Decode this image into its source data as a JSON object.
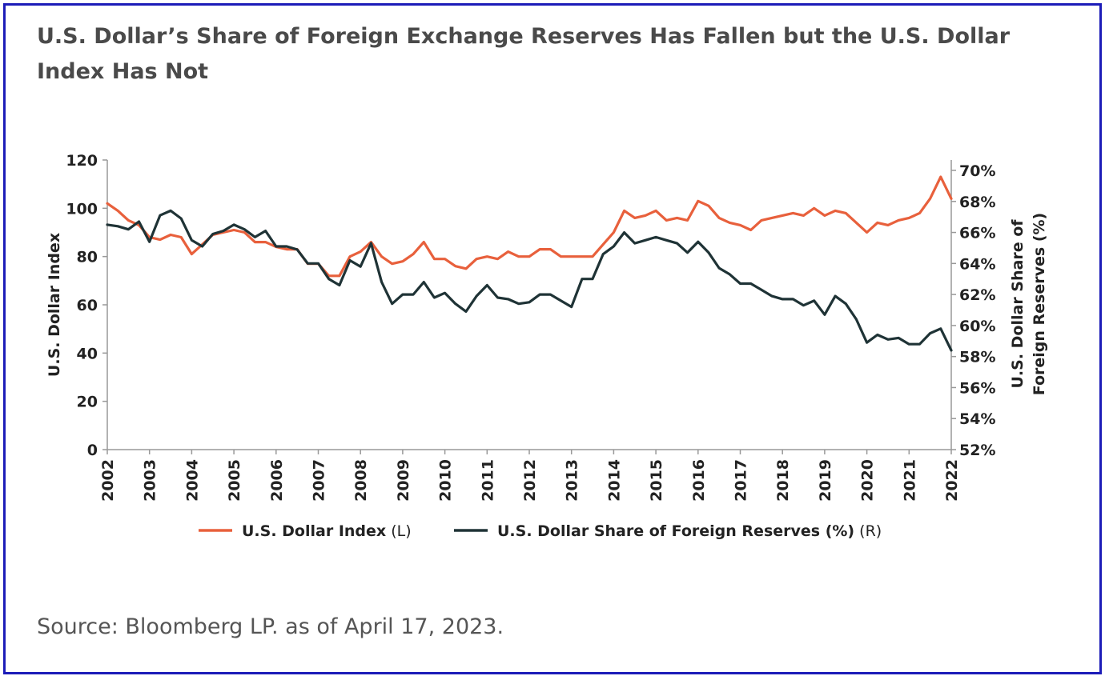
{
  "title": "U.S. Dollar’s Share of Foreign Exchange Reserves Has Fallen but the U.S. Dollar Index Has Not",
  "source": "Source: Bloomberg LP. as of April 17, 2023.",
  "colors": {
    "border": "#1c1cb8",
    "dxy": "#e8603c",
    "share": "#1f3336",
    "axis": "#999999"
  },
  "chart_data": {
    "type": "line",
    "title": "U.S. Dollar’s Share of Foreign Exchange Reserves Has Fallen but the U.S. Dollar Index Has Not",
    "xlabel": "",
    "ylabel_left": "U.S. Dollar Index",
    "ylabel_right": "U.S. Dollar Share of Foreign Reserves (%)",
    "ylabel_right_lines": [
      "U.S. Dollar Share of",
      "Foreign Reserves (%)"
    ],
    "xlim": [
      2002,
      2022
    ],
    "ylim_left": [
      0,
      120
    ],
    "ylim_right": [
      52,
      70
    ],
    "x_ticks": [
      "2002",
      "2003",
      "2004",
      "2005",
      "2006",
      "2007",
      "2008",
      "2009",
      "2010",
      "2011",
      "2012",
      "2013",
      "2014",
      "2015",
      "2016",
      "2017",
      "2018",
      "2019",
      "2020",
      "2021",
      "2022"
    ],
    "y_ticks_left": [
      "0",
      "20",
      "40",
      "60",
      "80",
      "100",
      "120"
    ],
    "y_ticks_right": [
      "52%",
      "54%",
      "56%",
      "58%",
      "60%",
      "62%",
      "64%",
      "66%",
      "68%",
      "70%"
    ],
    "legend": [
      {
        "label": "U.S. Dollar Index",
        "suffix": " (L)",
        "axis": "left"
      },
      {
        "label": "U.S. Dollar Share of Foreign Reserves (%)",
        "suffix": " (R)",
        "axis": "right"
      }
    ],
    "series": [
      {
        "name": "U.S. Dollar Index",
        "axis": "left",
        "x": [
          2002.0,
          2002.25,
          2002.5,
          2002.75,
          2003.0,
          2003.25,
          2003.5,
          2003.75,
          2004.0,
          2004.25,
          2004.5,
          2004.75,
          2005.0,
          2005.25,
          2005.5,
          2005.75,
          2006.0,
          2006.25,
          2006.5,
          2006.75,
          2007.0,
          2007.25,
          2007.5,
          2007.75,
          2008.0,
          2008.25,
          2008.5,
          2008.75,
          2009.0,
          2009.25,
          2009.5,
          2009.75,
          2010.0,
          2010.25,
          2010.5,
          2010.75,
          2011.0,
          2011.25,
          2011.5,
          2011.75,
          2012.0,
          2012.25,
          2012.5,
          2012.75,
          2013.0,
          2013.25,
          2013.5,
          2013.75,
          2014.0,
          2014.25,
          2014.5,
          2014.75,
          2015.0,
          2015.25,
          2015.5,
          2015.75,
          2016.0,
          2016.25,
          2016.5,
          2016.75,
          2017.0,
          2017.25,
          2017.5,
          2017.75,
          2018.0,
          2018.25,
          2018.5,
          2018.75,
          2019.0,
          2019.25,
          2019.5,
          2019.75,
          2020.0,
          2020.25,
          2020.5,
          2020.75,
          2021.0,
          2021.25,
          2021.5,
          2021.75,
          2022.0
        ],
        "values": [
          102,
          99,
          95,
          93,
          88,
          87,
          89,
          88,
          81,
          85,
          89,
          90,
          91,
          90,
          86,
          86,
          84,
          83,
          83,
          77,
          77,
          72,
          72,
          80,
          82,
          86,
          80,
          77,
          78,
          81,
          86,
          79,
          79,
          76,
          75,
          79,
          80,
          79,
          82,
          80,
          80,
          83,
          83,
          80,
          80,
          80,
          80,
          85,
          90,
          99,
          96,
          97,
          99,
          95,
          96,
          95,
          103,
          101,
          96,
          94,
          93,
          91,
          95,
          96,
          97,
          98,
          97,
          100,
          97,
          99,
          98,
          94,
          90,
          94,
          93,
          95,
          96,
          98,
          104,
          113,
          104
        ]
      },
      {
        "name": "U.S. Dollar Share of Foreign Reserves (%)",
        "axis": "right",
        "x": [
          2002.0,
          2002.25,
          2002.5,
          2002.75,
          2003.0,
          2003.25,
          2003.5,
          2003.75,
          2004.0,
          2004.25,
          2004.5,
          2004.75,
          2005.0,
          2005.25,
          2005.5,
          2005.75,
          2006.0,
          2006.25,
          2006.5,
          2006.75,
          2007.0,
          2007.25,
          2007.5,
          2007.75,
          2008.0,
          2008.25,
          2008.5,
          2008.75,
          2009.0,
          2009.25,
          2009.5,
          2009.75,
          2010.0,
          2010.25,
          2010.5,
          2010.75,
          2011.0,
          2011.25,
          2011.5,
          2011.75,
          2012.0,
          2012.25,
          2012.5,
          2012.75,
          2013.0,
          2013.25,
          2013.5,
          2013.75,
          2014.0,
          2014.25,
          2014.5,
          2014.75,
          2015.0,
          2015.25,
          2015.5,
          2015.75,
          2016.0,
          2016.25,
          2016.5,
          2016.75,
          2017.0,
          2017.25,
          2017.5,
          2017.75,
          2018.0,
          2018.25,
          2018.5,
          2018.75,
          2019.0,
          2019.25,
          2019.5,
          2019.75,
          2020.0,
          2020.25,
          2020.5,
          2020.75,
          2021.0,
          2021.25,
          2021.5,
          2021.75,
          2022.0
        ],
        "values": [
          66.5,
          66.4,
          66.2,
          66.7,
          65.4,
          67.1,
          67.4,
          66.9,
          65.5,
          65.1,
          65.9,
          66.1,
          66.5,
          66.2,
          65.7,
          66.1,
          65.1,
          65.1,
          64.9,
          64.0,
          64.0,
          63.0,
          62.6,
          64.2,
          63.8,
          65.3,
          62.8,
          61.4,
          62.0,
          62.0,
          62.8,
          61.8,
          62.1,
          61.4,
          60.9,
          61.9,
          62.6,
          61.8,
          61.7,
          61.4,
          61.5,
          62.0,
          62.0,
          61.6,
          61.2,
          63.0,
          63.0,
          64.6,
          65.1,
          66.0,
          65.3,
          65.5,
          65.7,
          65.5,
          65.3,
          64.7,
          65.4,
          64.7,
          63.7,
          63.3,
          62.7,
          62.7,
          62.3,
          61.9,
          61.7,
          61.7,
          61.3,
          61.6,
          60.7,
          61.9,
          61.4,
          60.4,
          58.9,
          59.4,
          59.1,
          59.2,
          58.8,
          58.8,
          59.5,
          59.8,
          58.4
        ]
      }
    ]
  }
}
